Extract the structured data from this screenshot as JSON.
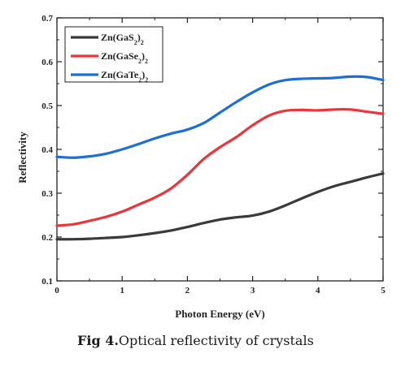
{
  "chart_data": {
    "type": "line",
    "xlabel": "Photon Energy (eV)",
    "ylabel": "Reflectivity",
    "xlim": [
      0,
      5
    ],
    "ylim": [
      0.1,
      0.7
    ],
    "x_ticks": [
      "0",
      "1",
      "2",
      "3",
      "4",
      "5"
    ],
    "y_ticks": [
      "0.1",
      "0.2",
      "0.3",
      "0.4",
      "0.5",
      "0.6",
      "0.7"
    ],
    "grid": false,
    "legend_position": "top-left",
    "series": [
      {
        "name_main": "Zn(GaS",
        "name_sub1": "2",
        "name_mid": ")",
        "name_sub2": "2",
        "color": "#3a3a3a",
        "x": [
          0,
          0.25,
          0.5,
          0.75,
          1,
          1.25,
          1.5,
          1.75,
          2,
          2.25,
          2.5,
          2.75,
          3,
          3.25,
          3.5,
          3.75,
          4,
          4.25,
          4.5,
          4.75,
          5
        ],
        "y": [
          0.195,
          0.195,
          0.196,
          0.198,
          0.2,
          0.204,
          0.209,
          0.215,
          0.223,
          0.232,
          0.24,
          0.245,
          0.249,
          0.258,
          0.272,
          0.288,
          0.303,
          0.316,
          0.326,
          0.336,
          0.345
        ]
      },
      {
        "name_main": "Zn(GaSe",
        "name_sub1": "2",
        "name_mid": ")",
        "name_sub2": "2",
        "color": "#e8373b",
        "x": [
          0,
          0.25,
          0.5,
          0.75,
          1,
          1.25,
          1.5,
          1.75,
          2,
          2.25,
          2.5,
          2.75,
          3,
          3.25,
          3.5,
          3.75,
          4,
          4.25,
          4.5,
          4.75,
          5
        ],
        "y": [
          0.226,
          0.229,
          0.237,
          0.246,
          0.258,
          0.274,
          0.29,
          0.311,
          0.342,
          0.378,
          0.405,
          0.428,
          0.455,
          0.477,
          0.488,
          0.49,
          0.489,
          0.491,
          0.491,
          0.486,
          0.481
        ]
      },
      {
        "name_main": "Zn(GaTe",
        "name_sub1": "2",
        "name_mid": ")",
        "name_sub2": "2",
        "color": "#1f6fd1",
        "x": [
          0,
          0.25,
          0.5,
          0.75,
          1,
          1.25,
          1.5,
          1.75,
          2,
          2.25,
          2.5,
          2.75,
          3,
          3.25,
          3.5,
          3.75,
          4,
          4.25,
          4.5,
          4.75,
          5
        ],
        "y": [
          0.383,
          0.381,
          0.384,
          0.39,
          0.4,
          0.412,
          0.425,
          0.436,
          0.445,
          0.46,
          0.484,
          0.508,
          0.53,
          0.548,
          0.558,
          0.561,
          0.562,
          0.563,
          0.566,
          0.565,
          0.558
        ]
      }
    ]
  },
  "caption": {
    "bold": "Fig 4.",
    "text": "Optical reflectivity of crystals"
  }
}
